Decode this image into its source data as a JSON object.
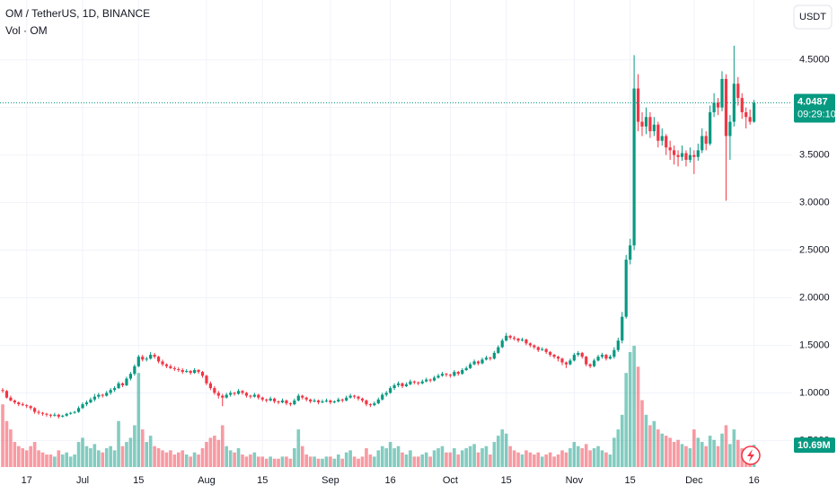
{
  "chart_data": {
    "type": "candlestick",
    "title": "OM / TetherUS, 1D, BINANCE",
    "volume_title": "Vol · OM",
    "currency": "USDT",
    "countdown": "09:29:10",
    "volume_last_label": "10.69M",
    "up_color": "#089981",
    "down_color": "#f23645",
    "grid": true,
    "ylim": [
      0.22,
      5.13
    ],
    "yticks": [
      {
        "value": 0.5,
        "label": "0.5000"
      },
      {
        "value": 1,
        "label": "1.0000"
      },
      {
        "value": 1.5,
        "label": "1.5000"
      },
      {
        "value": 2,
        "label": "2.0000"
      },
      {
        "value": 2.5,
        "label": "2.5000"
      },
      {
        "value": 3,
        "label": "3.0000"
      },
      {
        "value": 3.5,
        "label": "3.5000"
      },
      {
        "value": 4,
        "label": "4.0000"
      },
      {
        "value": 4.5,
        "label": "4.5000"
      }
    ],
    "categories": [
      null,
      null,
      null,
      null,
      null,
      null,
      "17",
      null,
      null,
      null,
      null,
      null,
      null,
      null,
      null,
      null,
      null,
      null,
      null,
      null,
      "Jul",
      null,
      null,
      null,
      null,
      null,
      null,
      null,
      null,
      null,
      null,
      null,
      null,
      null,
      "15",
      null,
      null,
      null,
      null,
      null,
      null,
      null,
      null,
      null,
      null,
      null,
      null,
      null,
      null,
      null,
      null,
      "Aug",
      null,
      null,
      null,
      null,
      null,
      null,
      null,
      null,
      null,
      null,
      null,
      null,
      null,
      "15",
      null,
      null,
      null,
      null,
      null,
      null,
      null,
      null,
      null,
      null,
      null,
      null,
      null,
      null,
      null,
      null,
      "Sep",
      null,
      null,
      null,
      null,
      null,
      null,
      null,
      null,
      null,
      null,
      null,
      null,
      null,
      null,
      "16",
      null,
      null,
      null,
      null,
      null,
      null,
      null,
      null,
      null,
      null,
      null,
      null,
      null,
      null,
      "Oct",
      null,
      null,
      null,
      null,
      null,
      null,
      null,
      null,
      null,
      null,
      null,
      null,
      null,
      "15",
      null,
      null,
      null,
      null,
      null,
      null,
      null,
      null,
      null,
      null,
      null,
      null,
      null,
      null,
      null,
      null,
      "Nov",
      null,
      null,
      null,
      null,
      null,
      null,
      null,
      null,
      null,
      null,
      null,
      null,
      null,
      "15",
      null,
      null,
      null,
      null,
      null,
      null,
      null,
      null,
      null,
      null,
      null,
      null,
      null,
      null,
      null,
      "Dec",
      null,
      null,
      null,
      null,
      null,
      null,
      null,
      null,
      null,
      null,
      null,
      null,
      null,
      null,
      "16"
    ],
    "ohlc": [
      [
        1.03,
        1.05,
        1.0,
        1.02
      ],
      [
        1.02,
        1.03,
        0.94,
        0.95
      ],
      [
        0.95,
        0.97,
        0.91,
        0.92
      ],
      [
        0.92,
        0.93,
        0.88,
        0.9
      ],
      [
        0.9,
        0.91,
        0.86,
        0.88
      ],
      [
        0.88,
        0.9,
        0.86,
        0.87
      ],
      [
        0.87,
        0.88,
        0.84,
        0.86
      ],
      [
        0.86,
        0.87,
        0.82,
        0.84
      ],
      [
        0.84,
        0.85,
        0.78,
        0.8
      ],
      [
        0.8,
        0.82,
        0.77,
        0.79
      ],
      [
        0.79,
        0.8,
        0.76,
        0.78
      ],
      [
        0.78,
        0.79,
        0.75,
        0.77
      ],
      [
        0.77,
        0.78,
        0.74,
        0.76
      ],
      [
        0.76,
        0.79,
        0.75,
        0.77
      ],
      [
        0.77,
        0.78,
        0.73,
        0.75
      ],
      [
        0.75,
        0.77,
        0.74,
        0.76
      ],
      [
        0.76,
        0.79,
        0.75,
        0.78
      ],
      [
        0.78,
        0.8,
        0.77,
        0.79
      ],
      [
        0.79,
        0.81,
        0.78,
        0.8
      ],
      [
        0.8,
        0.86,
        0.79,
        0.84
      ],
      [
        0.84,
        0.9,
        0.83,
        0.88
      ],
      [
        0.88,
        0.92,
        0.86,
        0.9
      ],
      [
        0.9,
        0.95,
        0.89,
        0.93
      ],
      [
        0.93,
        0.99,
        0.91,
        0.96
      ],
      [
        0.96,
        1.0,
        0.94,
        0.98
      ],
      [
        0.98,
        0.99,
        0.95,
        0.97
      ],
      [
        0.97,
        1.02,
        0.96,
        1.0
      ],
      [
        1.0,
        1.05,
        0.98,
        1.03
      ],
      [
        1.03,
        1.07,
        1.01,
        1.05
      ],
      [
        1.05,
        1.12,
        1.04,
        1.1
      ],
      [
        1.1,
        1.11,
        1.06,
        1.08
      ],
      [
        1.08,
        1.17,
        1.07,
        1.15
      ],
      [
        1.15,
        1.22,
        1.13,
        1.2
      ],
      [
        1.2,
        1.3,
        1.18,
        1.28
      ],
      [
        1.28,
        1.4,
        1.27,
        1.38
      ],
      [
        1.38,
        1.4,
        1.33,
        1.35
      ],
      [
        1.35,
        1.38,
        1.33,
        1.36
      ],
      [
        1.36,
        1.43,
        1.35,
        1.4
      ],
      [
        1.4,
        1.42,
        1.36,
        1.38
      ],
      [
        1.38,
        1.39,
        1.31,
        1.33
      ],
      [
        1.33,
        1.35,
        1.28,
        1.3
      ],
      [
        1.3,
        1.31,
        1.26,
        1.28
      ],
      [
        1.28,
        1.3,
        1.25,
        1.26
      ],
      [
        1.26,
        1.28,
        1.23,
        1.25
      ],
      [
        1.25,
        1.27,
        1.22,
        1.24
      ],
      [
        1.24,
        1.26,
        1.2,
        1.22
      ],
      [
        1.22,
        1.25,
        1.21,
        1.23
      ],
      [
        1.23,
        1.24,
        1.19,
        1.21
      ],
      [
        1.21,
        1.26,
        1.2,
        1.24
      ],
      [
        1.24,
        1.25,
        1.2,
        1.22
      ],
      [
        1.22,
        1.23,
        1.16,
        1.18
      ],
      [
        1.18,
        1.19,
        1.08,
        1.1
      ],
      [
        1.1,
        1.12,
        1.03,
        1.05
      ],
      [
        1.05,
        1.07,
        0.98,
        1.0
      ],
      [
        1.0,
        1.02,
        0.94,
        0.97
      ],
      [
        0.97,
        0.99,
        0.86,
        0.95
      ],
      [
        0.95,
        1.0,
        0.94,
        0.98
      ],
      [
        0.98,
        1.02,
        0.96,
        1.0
      ],
      [
        1.0,
        1.01,
        0.97,
        0.99
      ],
      [
        0.99,
        1.04,
        0.98,
        1.02
      ],
      [
        1.02,
        1.03,
        0.98,
        1.0
      ],
      [
        1.0,
        1.01,
        0.95,
        0.97
      ],
      [
        0.97,
        0.98,
        0.94,
        0.96
      ],
      [
        0.96,
        1.0,
        0.95,
        0.98
      ],
      [
        0.98,
        0.99,
        0.93,
        0.95
      ],
      [
        0.95,
        0.96,
        0.91,
        0.93
      ],
      [
        0.93,
        0.94,
        0.9,
        0.92
      ],
      [
        0.92,
        0.96,
        0.91,
        0.94
      ],
      [
        0.94,
        0.95,
        0.89,
        0.91
      ],
      [
        0.91,
        0.92,
        0.88,
        0.9
      ],
      [
        0.9,
        0.94,
        0.89,
        0.92
      ],
      [
        0.92,
        0.93,
        0.87,
        0.89
      ],
      [
        0.89,
        0.9,
        0.86,
        0.88
      ],
      [
        0.88,
        0.94,
        0.87,
        0.92
      ],
      [
        0.92,
        0.99,
        0.91,
        0.97
      ],
      [
        0.97,
        0.98,
        0.93,
        0.95
      ],
      [
        0.95,
        0.96,
        0.91,
        0.93
      ],
      [
        0.93,
        0.94,
        0.89,
        0.91
      ],
      [
        0.91,
        0.94,
        0.9,
        0.92
      ],
      [
        0.92,
        0.93,
        0.88,
        0.9
      ],
      [
        0.9,
        0.93,
        0.89,
        0.91
      ],
      [
        0.91,
        0.94,
        0.9,
        0.92
      ],
      [
        0.92,
        0.93,
        0.88,
        0.9
      ],
      [
        0.9,
        0.92,
        0.89,
        0.91
      ],
      [
        0.91,
        0.95,
        0.9,
        0.93
      ],
      [
        0.93,
        0.94,
        0.9,
        0.92
      ],
      [
        0.92,
        0.97,
        0.91,
        0.95
      ],
      [
        0.95,
        0.99,
        0.94,
        0.97
      ],
      [
        0.97,
        0.98,
        0.94,
        0.96
      ],
      [
        0.96,
        0.97,
        0.92,
        0.94
      ],
      [
        0.94,
        0.95,
        0.9,
        0.92
      ],
      [
        0.92,
        0.93,
        0.86,
        0.88
      ],
      [
        0.88,
        0.89,
        0.85,
        0.87
      ],
      [
        0.87,
        0.91,
        0.86,
        0.89
      ],
      [
        0.89,
        0.95,
        0.88,
        0.93
      ],
      [
        0.93,
        1.0,
        0.92,
        0.98
      ],
      [
        0.98,
        1.02,
        0.96,
        1.0
      ],
      [
        1.0,
        1.07,
        0.99,
        1.05
      ],
      [
        1.05,
        1.1,
        1.03,
        1.08
      ],
      [
        1.08,
        1.12,
        1.06,
        1.1
      ],
      [
        1.1,
        1.11,
        1.05,
        1.07
      ],
      [
        1.07,
        1.11,
        1.06,
        1.09
      ],
      [
        1.09,
        1.14,
        1.08,
        1.12
      ],
      [
        1.12,
        1.13,
        1.09,
        1.11
      ],
      [
        1.11,
        1.12,
        1.08,
        1.1
      ],
      [
        1.1,
        1.14,
        1.09,
        1.12
      ],
      [
        1.12,
        1.16,
        1.11,
        1.14
      ],
      [
        1.14,
        1.15,
        1.11,
        1.13
      ],
      [
        1.13,
        1.18,
        1.12,
        1.16
      ],
      [
        1.16,
        1.2,
        1.15,
        1.18
      ],
      [
        1.18,
        1.22,
        1.17,
        1.2
      ],
      [
        1.2,
        1.21,
        1.17,
        1.19
      ],
      [
        1.19,
        1.2,
        1.16,
        1.18
      ],
      [
        1.18,
        1.24,
        1.17,
        1.22
      ],
      [
        1.22,
        1.23,
        1.18,
        1.2
      ],
      [
        1.2,
        1.26,
        1.19,
        1.24
      ],
      [
        1.24,
        1.28,
        1.23,
        1.26
      ],
      [
        1.26,
        1.32,
        1.25,
        1.3
      ],
      [
        1.3,
        1.35,
        1.29,
        1.33
      ],
      [
        1.33,
        1.34,
        1.29,
        1.31
      ],
      [
        1.31,
        1.37,
        1.3,
        1.35
      ],
      [
        1.35,
        1.39,
        1.34,
        1.37
      ],
      [
        1.37,
        1.38,
        1.34,
        1.36
      ],
      [
        1.36,
        1.44,
        1.35,
        1.42
      ],
      [
        1.42,
        1.5,
        1.41,
        1.48
      ],
      [
        1.48,
        1.57,
        1.47,
        1.55
      ],
      [
        1.55,
        1.63,
        1.54,
        1.6
      ],
      [
        1.6,
        1.61,
        1.56,
        1.58
      ],
      [
        1.58,
        1.6,
        1.55,
        1.57
      ],
      [
        1.57,
        1.58,
        1.53,
        1.55
      ],
      [
        1.55,
        1.58,
        1.54,
        1.56
      ],
      [
        1.56,
        1.57,
        1.5,
        1.52
      ],
      [
        1.52,
        1.53,
        1.48,
        1.5
      ],
      [
        1.5,
        1.51,
        1.46,
        1.48
      ],
      [
        1.48,
        1.49,
        1.43,
        1.45
      ],
      [
        1.45,
        1.48,
        1.44,
        1.46
      ],
      [
        1.46,
        1.47,
        1.41,
        1.43
      ],
      [
        1.43,
        1.44,
        1.38,
        1.4
      ],
      [
        1.4,
        1.41,
        1.36,
        1.38
      ],
      [
        1.38,
        1.39,
        1.33,
        1.36
      ],
      [
        1.36,
        1.37,
        1.29,
        1.32
      ],
      [
        1.32,
        1.33,
        1.26,
        1.3
      ],
      [
        1.3,
        1.36,
        1.29,
        1.34
      ],
      [
        1.34,
        1.42,
        1.33,
        1.4
      ],
      [
        1.4,
        1.44,
        1.38,
        1.42
      ],
      [
        1.42,
        1.43,
        1.36,
        1.38
      ],
      [
        1.38,
        1.39,
        1.28,
        1.3
      ],
      [
        1.3,
        1.31,
        1.26,
        1.28
      ],
      [
        1.28,
        1.36,
        1.27,
        1.34
      ],
      [
        1.34,
        1.4,
        1.33,
        1.38
      ],
      [
        1.38,
        1.42,
        1.36,
        1.4
      ],
      [
        1.4,
        1.41,
        1.34,
        1.36
      ],
      [
        1.36,
        1.4,
        1.35,
        1.38
      ],
      [
        1.38,
        1.48,
        1.36,
        1.45
      ],
      [
        1.45,
        1.58,
        1.43,
        1.55
      ],
      [
        1.55,
        1.85,
        1.52,
        1.8
      ],
      [
        1.8,
        2.45,
        1.78,
        2.4
      ],
      [
        2.4,
        2.62,
        2.35,
        2.55
      ],
      [
        2.55,
        4.55,
        2.5,
        4.2
      ],
      [
        4.2,
        4.35,
        3.75,
        3.85
      ],
      [
        3.85,
        3.95,
        3.7,
        3.8
      ],
      [
        3.8,
        4.0,
        3.72,
        3.9
      ],
      [
        3.9,
        3.95,
        3.68,
        3.75
      ],
      [
        3.75,
        3.9,
        3.7,
        3.82
      ],
      [
        3.82,
        3.85,
        3.58,
        3.65
      ],
      [
        3.65,
        3.78,
        3.6,
        3.7
      ],
      [
        3.7,
        3.72,
        3.5,
        3.58
      ],
      [
        3.58,
        3.65,
        3.45,
        3.55
      ],
      [
        3.55,
        3.6,
        3.4,
        3.5
      ],
      [
        3.5,
        3.55,
        3.38,
        3.48
      ],
      [
        3.48,
        3.6,
        3.44,
        3.52
      ],
      [
        3.52,
        3.55,
        3.38,
        3.45
      ],
      [
        3.45,
        3.58,
        3.42,
        3.5
      ],
      [
        3.5,
        3.55,
        3.3,
        3.48
      ],
      [
        3.48,
        3.62,
        3.44,
        3.55
      ],
      [
        3.55,
        3.78,
        3.52,
        3.7
      ],
      [
        3.7,
        3.75,
        3.55,
        3.62
      ],
      [
        3.62,
        4.02,
        3.6,
        3.95
      ],
      [
        3.95,
        4.15,
        3.9,
        4.05
      ],
      [
        4.05,
        4.1,
        3.92,
        4.0
      ],
      [
        4.0,
        4.38,
        3.96,
        4.3
      ],
      [
        4.3,
        4.35,
        3.02,
        3.7
      ],
      [
        3.7,
        3.92,
        3.45,
        3.85
      ],
      [
        3.85,
        4.65,
        3.8,
        4.25
      ],
      [
        4.25,
        4.32,
        4.02,
        4.1
      ],
      [
        4.1,
        4.15,
        3.88,
        3.95
      ],
      [
        3.95,
        4.0,
        3.78,
        3.9
      ],
      [
        3.9,
        3.98,
        3.82,
        3.85
      ],
      [
        3.85,
        4.08,
        3.84,
        4.0487
      ]
    ],
    "volume": [
      30,
      22,
      18,
      12,
      10,
      9,
      8,
      10,
      12,
      8,
      7,
      6,
      6,
      5,
      8,
      6,
      7,
      5,
      6,
      12,
      14,
      10,
      9,
      11,
      8,
      7,
      9,
      10,
      8,
      22,
      10,
      12,
      14,
      20,
      45,
      18,
      12,
      15,
      10,
      9,
      8,
      7,
      8,
      6,
      7,
      8,
      6,
      5,
      7,
      6,
      9,
      12,
      14,
      15,
      13,
      20,
      10,
      8,
      7,
      9,
      6,
      5,
      6,
      7,
      5,
      5,
      4,
      5,
      4,
      4,
      5,
      5,
      4,
      9,
      18,
      10,
      6,
      5,
      5,
      4,
      4,
      5,
      5,
      4,
      6,
      4,
      7,
      8,
      5,
      4,
      5,
      9,
      6,
      5,
      8,
      10,
      9,
      12,
      9,
      10,
      7,
      6,
      8,
      5,
      5,
      6,
      7,
      5,
      8,
      9,
      10,
      7,
      7,
      9,
      6,
      8,
      9,
      10,
      11,
      7,
      9,
      10,
      6,
      12,
      15,
      18,
      16,
      10,
      8,
      7,
      6,
      8,
      7,
      6,
      7,
      5,
      6,
      7,
      5,
      6,
      8,
      7,
      9,
      12,
      10,
      9,
      11,
      8,
      9,
      10,
      8,
      7,
      6,
      14,
      18,
      25,
      45,
      55,
      58,
      48,
      32,
      25,
      20,
      22,
      18,
      16,
      15,
      14,
      12,
      13,
      11,
      10,
      9,
      18,
      14,
      12,
      10,
      15,
      13,
      10,
      16,
      20,
      11,
      18,
      13,
      9,
      8,
      6,
      10.69
    ]
  }
}
